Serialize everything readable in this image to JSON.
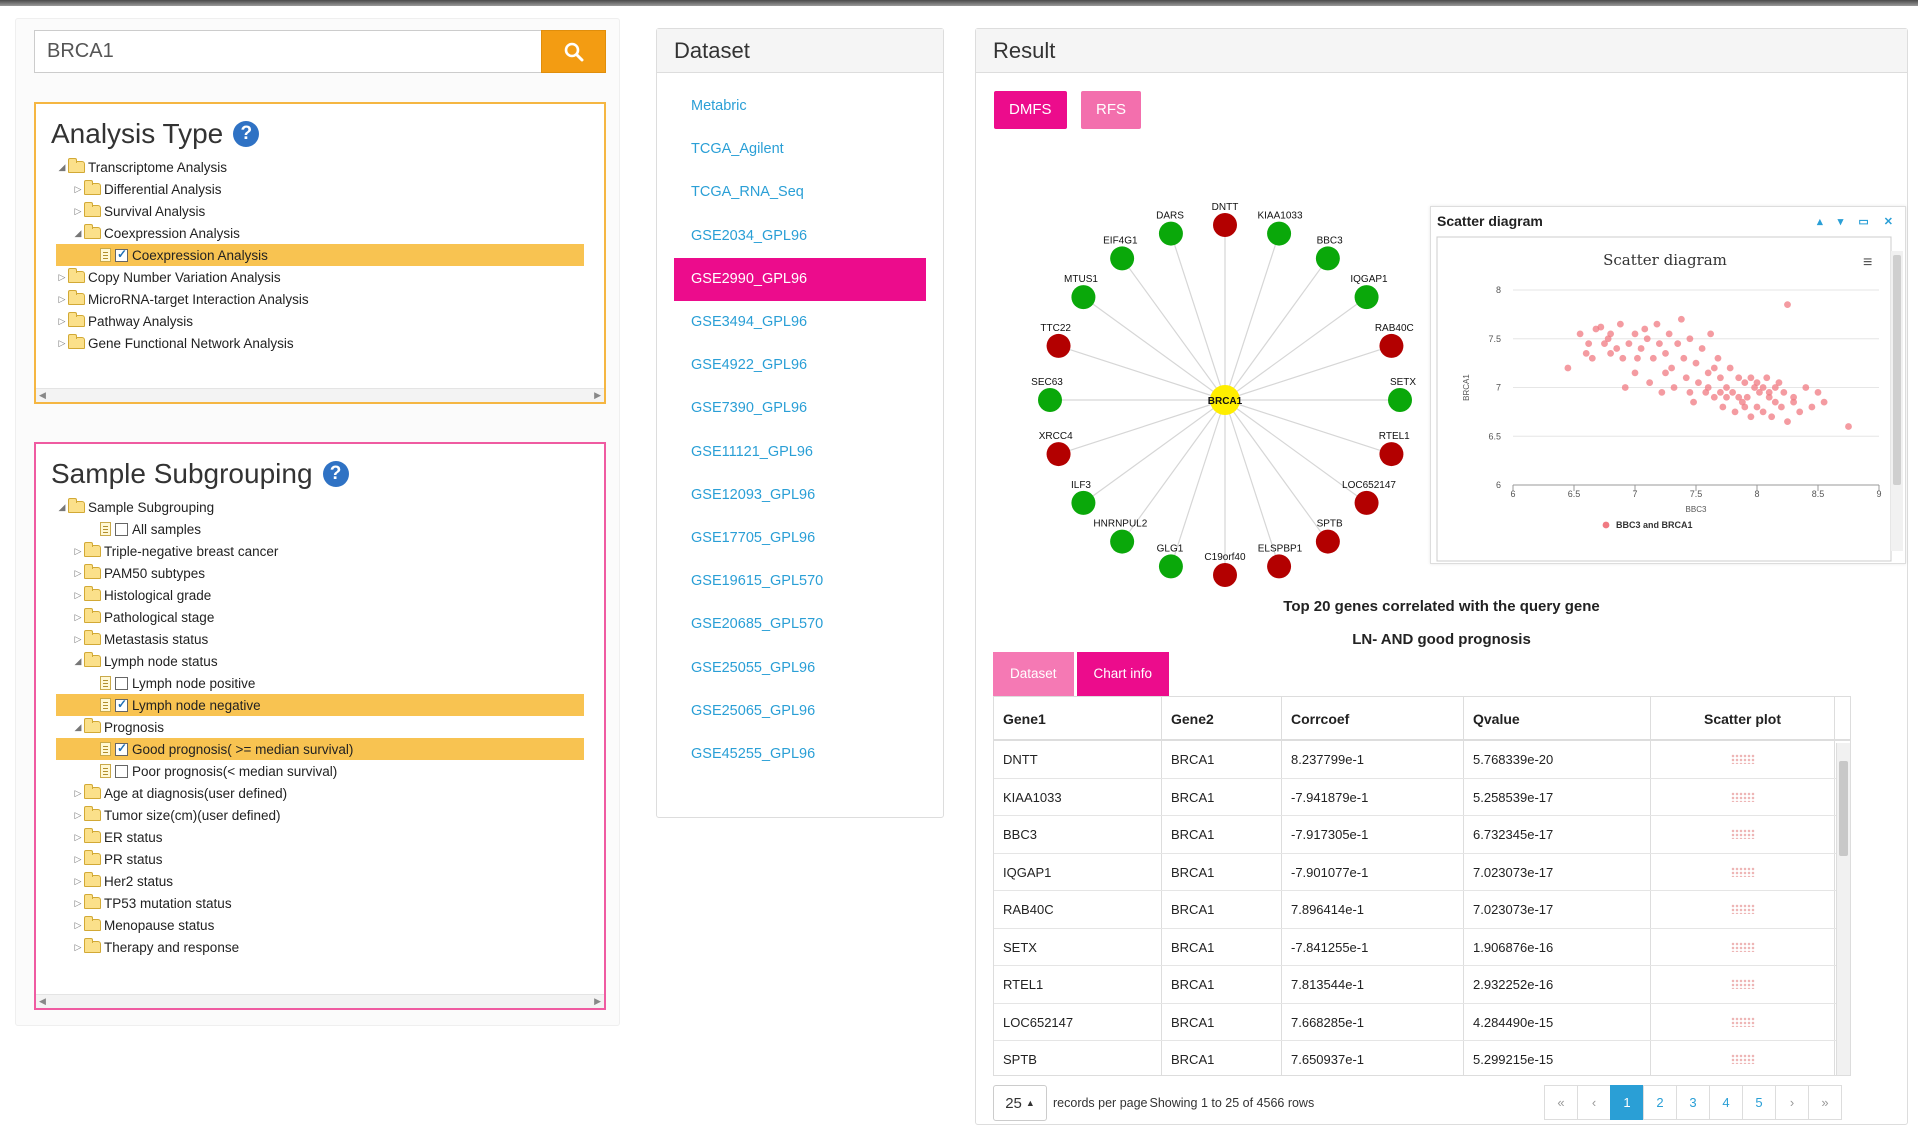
{
  "search": {
    "value": "BRCA1"
  },
  "analysis_type": {
    "title": "Analysis Type",
    "tree": [
      {
        "label": "Transcriptome Analysis",
        "level": 0,
        "toggle": "open",
        "kind": "folder"
      },
      {
        "label": "Differential Analysis",
        "level": 1,
        "toggle": "closed",
        "kind": "folder"
      },
      {
        "label": "Survival Analysis",
        "level": 1,
        "toggle": "closed",
        "kind": "folder"
      },
      {
        "label": "Coexpression Analysis",
        "level": 1,
        "toggle": "open",
        "kind": "folder"
      },
      {
        "label": "Coexpression Analysis",
        "level": 2,
        "toggle": "",
        "kind": "file",
        "checkbox": true,
        "checked": true,
        "selected": true
      },
      {
        "label": "Copy Number Variation Analysis",
        "level": 0,
        "toggle": "closed",
        "kind": "folder"
      },
      {
        "label": "MicroRNA-target Interaction Analysis",
        "level": 0,
        "toggle": "closed",
        "kind": "folder"
      },
      {
        "label": "Pathway Analysis",
        "level": 0,
        "toggle": "closed",
        "kind": "folder"
      },
      {
        "label": "Gene Functional Network Analysis",
        "level": 0,
        "toggle": "closed",
        "kind": "folder"
      }
    ]
  },
  "sample_subgrouping": {
    "title": "Sample Subgrouping",
    "tree": [
      {
        "label": "Sample Subgrouping",
        "level": 0,
        "toggle": "open",
        "kind": "folder"
      },
      {
        "label": "All samples",
        "level": 2,
        "toggle": "",
        "kind": "file",
        "checkbox": true,
        "checked": false
      },
      {
        "label": "Triple-negative breast cancer",
        "level": 1,
        "toggle": "closed",
        "kind": "folder"
      },
      {
        "label": "PAM50 subtypes",
        "level": 1,
        "toggle": "closed",
        "kind": "folder"
      },
      {
        "label": "Histological grade",
        "level": 1,
        "toggle": "closed",
        "kind": "folder"
      },
      {
        "label": "Pathological stage",
        "level": 1,
        "toggle": "closed",
        "kind": "folder"
      },
      {
        "label": "Metastasis status",
        "level": 1,
        "toggle": "closed",
        "kind": "folder"
      },
      {
        "label": "Lymph node status",
        "level": 1,
        "toggle": "open",
        "kind": "folder"
      },
      {
        "label": "Lymph node positive",
        "level": 2,
        "toggle": "",
        "kind": "file",
        "checkbox": true,
        "checked": false
      },
      {
        "label": "Lymph node negative",
        "level": 2,
        "toggle": "",
        "kind": "file",
        "checkbox": true,
        "checked": true,
        "selected": true
      },
      {
        "label": "Prognosis",
        "level": 1,
        "toggle": "open",
        "kind": "folder"
      },
      {
        "label": "Good prognosis( >= median survival)",
        "level": 2,
        "toggle": "",
        "kind": "file",
        "checkbox": true,
        "checked": true,
        "selected": true
      },
      {
        "label": "Poor prognosis(< median survival)",
        "level": 2,
        "toggle": "",
        "kind": "file",
        "checkbox": true,
        "checked": false
      },
      {
        "label": "Age at diagnosis(user defined)",
        "level": 1,
        "toggle": "closed",
        "kind": "folder"
      },
      {
        "label": "Tumor size(cm)(user defined)",
        "level": 1,
        "toggle": "closed",
        "kind": "folder"
      },
      {
        "label": "ER status",
        "level": 1,
        "toggle": "closed",
        "kind": "folder"
      },
      {
        "label": "PR status",
        "level": 1,
        "toggle": "closed",
        "kind": "folder"
      },
      {
        "label": "Her2 status",
        "level": 1,
        "toggle": "closed",
        "kind": "folder"
      },
      {
        "label": "TP53 mutation status",
        "level": 1,
        "toggle": "closed",
        "kind": "folder"
      },
      {
        "label": "Menopause status",
        "level": 1,
        "toggle": "closed",
        "kind": "folder"
      },
      {
        "label": "Therapy and response",
        "level": 1,
        "toggle": "closed",
        "kind": "folder"
      }
    ]
  },
  "dataset": {
    "title": "Dataset",
    "items": [
      "Metabric",
      "TCGA_Agilent",
      "TCGA_RNA_Seq",
      "GSE2034_GPL96",
      "GSE2990_GPL96",
      "GSE3494_GPL96",
      "GSE4922_GPL96",
      "GSE7390_GPL96",
      "GSE11121_GPL96",
      "GSE12093_GPL96",
      "GSE17705_GPL96",
      "GSE19615_GPL570",
      "GSE20685_GPL570",
      "GSE25055_GPL96",
      "GSE25065_GPL96",
      "GSE45255_GPL96"
    ],
    "active_index": 4
  },
  "result": {
    "title": "Result",
    "buttons": {
      "dmfs": "DMFS",
      "rfs": "RFS"
    },
    "network": {
      "center": "BRCA1",
      "nodes": [
        {
          "label": "DNTT",
          "color": "#b30000"
        },
        {
          "label": "KIAA1033",
          "color": "#0aa80a"
        },
        {
          "label": "BBC3",
          "color": "#0aa80a"
        },
        {
          "label": "IQGAP1",
          "color": "#0aa80a"
        },
        {
          "label": "RAB40C",
          "color": "#b30000"
        },
        {
          "label": "SETX",
          "color": "#0aa80a"
        },
        {
          "label": "RTEL1",
          "color": "#b30000"
        },
        {
          "label": "LOC652147",
          "color": "#b30000"
        },
        {
          "label": "SPTB",
          "color": "#b30000"
        },
        {
          "label": "ELSPBP1",
          "color": "#b30000"
        },
        {
          "label": "C19orf40",
          "color": "#b30000"
        },
        {
          "label": "GLG1",
          "color": "#0aa80a"
        },
        {
          "label": "HNRNPUL2",
          "color": "#0aa80a"
        },
        {
          "label": "ILF3",
          "color": "#0aa80a"
        },
        {
          "label": "XRCC4",
          "color": "#b30000"
        },
        {
          "label": "SEC63",
          "color": "#0aa80a"
        },
        {
          "label": "TTC22",
          "color": "#b30000"
        },
        {
          "label": "MTUS1",
          "color": "#0aa80a"
        },
        {
          "label": "EIF4G1",
          "color": "#0aa80a"
        },
        {
          "label": "DARS",
          "color": "#0aa80a"
        }
      ]
    },
    "caption1": "Top 20 genes correlated with the query gene",
    "caption2": "LN- AND good prognosis",
    "tabs": {
      "dataset": "Dataset",
      "chart_info": "Chart info"
    },
    "table": {
      "headers": [
        "Gene1",
        "Gene2",
        "Corrcoef",
        "Qvalue",
        "Scatter plot"
      ],
      "rows": [
        [
          "DNTT",
          "BRCA1",
          "8.237799e-1",
          "5.768339e-20"
        ],
        [
          "KIAA1033",
          "BRCA1",
          "-7.941879e-1",
          "5.258539e-17"
        ],
        [
          "BBC3",
          "BRCA1",
          "-7.917305e-1",
          "6.732345e-17"
        ],
        [
          "IQGAP1",
          "BRCA1",
          "-7.901077e-1",
          "7.023073e-17"
        ],
        [
          "RAB40C",
          "BRCA1",
          "7.896414e-1",
          "7.023073e-17"
        ],
        [
          "SETX",
          "BRCA1",
          "-7.841255e-1",
          "1.906876e-16"
        ],
        [
          "RTEL1",
          "BRCA1",
          "7.813544e-1",
          "2.932252e-16"
        ],
        [
          "LOC652147",
          "BRCA1",
          "7.668285e-1",
          "4.284490e-15"
        ],
        [
          "SPTB",
          "BRCA1",
          "7.650937e-1",
          "5.299215e-15"
        ]
      ]
    },
    "pager": {
      "page_size": "25",
      "records_text": "records per page",
      "showing_text": "Showing 1 to 25 of 4566 rows",
      "pages": [
        "«",
        "‹",
        "1",
        "2",
        "3",
        "4",
        "5",
        "›",
        "»"
      ],
      "active_page": "1"
    }
  },
  "chart_data": {
    "type": "scatter",
    "window_title": "Scatter diagram",
    "title": "Scatter diagram",
    "xlabel": "BBC3",
    "ylabel": "BRCA1",
    "xlim": [
      6,
      9
    ],
    "ylim": [
      6,
      8
    ],
    "xticks": [
      "6",
      "6.5",
      "7",
      "7.5",
      "8",
      "8.5",
      "9"
    ],
    "yticks": [
      "6",
      "6.5",
      "7",
      "7.5",
      "8"
    ],
    "series": [
      {
        "name": "BBC3 and BRCA1",
        "color": "#f07a82"
      }
    ],
    "points": [
      [
        6.45,
        7.2
      ],
      [
        6.55,
        7.55
      ],
      [
        6.6,
        7.35
      ],
      [
        6.62,
        7.45
      ],
      [
        6.65,
        7.3
      ],
      [
        6.68,
        7.6
      ],
      [
        6.72,
        7.62
      ],
      [
        6.75,
        7.45
      ],
      [
        6.78,
        7.5
      ],
      [
        6.8,
        7.55
      ],
      [
        6.85,
        7.4
      ],
      [
        6.88,
        7.65
      ],
      [
        6.9,
        7.3
      ],
      [
        6.92,
        7.0
      ],
      [
        6.95,
        7.45
      ],
      [
        7.0,
        7.55
      ],
      [
        7.0,
        7.15
      ],
      [
        7.02,
        7.3
      ],
      [
        7.05,
        7.4
      ],
      [
        7.08,
        7.6
      ],
      [
        7.1,
        7.5
      ],
      [
        7.12,
        7.05
      ],
      [
        7.15,
        7.3
      ],
      [
        7.18,
        7.65
      ],
      [
        7.2,
        7.45
      ],
      [
        7.22,
        6.95
      ],
      [
        7.25,
        7.35
      ],
      [
        7.28,
        7.55
      ],
      [
        7.3,
        7.2
      ],
      [
        7.32,
        7.0
      ],
      [
        7.35,
        7.45
      ],
      [
        7.38,
        7.7
      ],
      [
        7.4,
        7.3
      ],
      [
        7.42,
        7.1
      ],
      [
        7.45,
        7.5
      ],
      [
        7.48,
        6.85
      ],
      [
        7.5,
        7.25
      ],
      [
        7.52,
        7.05
      ],
      [
        7.55,
        7.4
      ],
      [
        7.58,
        6.95
      ],
      [
        7.6,
        7.15
      ],
      [
        7.62,
        7.55
      ],
      [
        7.65,
        6.9
      ],
      [
        7.68,
        7.3
      ],
      [
        7.7,
        7.1
      ],
      [
        7.72,
        6.8
      ],
      [
        7.75,
        7.0
      ],
      [
        7.78,
        7.2
      ],
      [
        7.8,
        6.95
      ],
      [
        7.82,
        6.75
      ],
      [
        7.85,
        7.1
      ],
      [
        7.88,
        6.85
      ],
      [
        7.9,
        7.05
      ],
      [
        7.92,
        6.9
      ],
      [
        7.95,
        6.7
      ],
      [
        7.98,
        7.0
      ],
      [
        8.0,
        6.8
      ],
      [
        8.02,
        6.95
      ],
      [
        8.05,
        6.75
      ],
      [
        8.08,
        7.1
      ],
      [
        8.1,
        6.9
      ],
      [
        8.12,
        6.7
      ],
      [
        8.15,
        6.85
      ],
      [
        8.18,
        7.05
      ],
      [
        8.2,
        6.8
      ],
      [
        8.22,
        6.95
      ],
      [
        8.25,
        6.65
      ],
      [
        8.3,
        6.9
      ],
      [
        8.35,
        6.75
      ],
      [
        8.4,
        7.0
      ],
      [
        8.45,
        6.8
      ],
      [
        8.5,
        6.95
      ],
      [
        8.55,
        6.85
      ],
      [
        8.75,
        6.6
      ],
      [
        8.25,
        7.85
      ],
      [
        7.95,
        7.1
      ],
      [
        7.85,
        6.9
      ],
      [
        8.05,
        7.0
      ],
      [
        7.7,
        6.95
      ],
      [
        7.6,
        7.0
      ],
      [
        6.8,
        7.35
      ],
      [
        7.25,
        7.15
      ],
      [
        7.45,
        6.95
      ],
      [
        7.65,
        7.2
      ],
      [
        8.15,
        7.0
      ],
      [
        8.3,
        6.85
      ],
      [
        7.75,
        6.9
      ],
      [
        7.9,
        6.8
      ],
      [
        8.0,
        7.05
      ],
      [
        8.1,
        6.95
      ]
    ]
  }
}
